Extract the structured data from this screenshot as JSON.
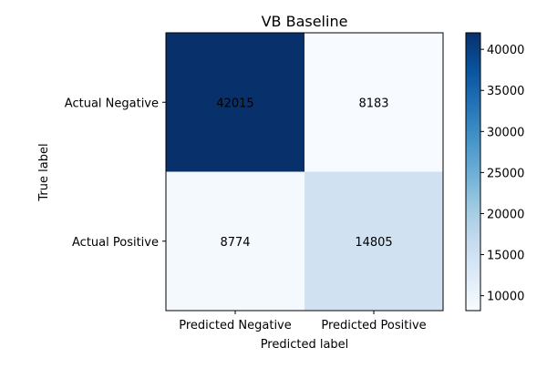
{
  "chart_data": {
    "type": "heatmap",
    "title": "VB Baseline",
    "xlabel": "Predicted label",
    "ylabel": "True label",
    "x_categories": [
      "Predicted Negative",
      "Predicted Positive"
    ],
    "y_categories": [
      "Actual Negative",
      "Actual Positive"
    ],
    "values": [
      [
        42015,
        8183
      ],
      [
        8774,
        14805
      ]
    ],
    "colormap": "Blues",
    "colorbar": {
      "range": [
        8183,
        42015
      ],
      "ticks": [
        10000,
        15000,
        20000,
        25000,
        30000,
        35000,
        40000
      ]
    },
    "grid": false
  }
}
